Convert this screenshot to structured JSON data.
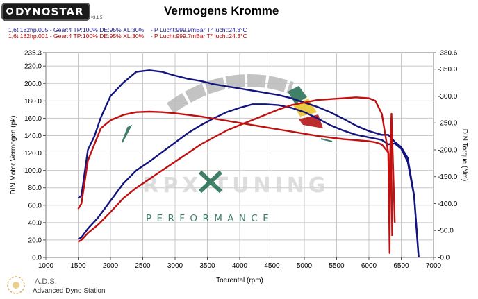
{
  "header": {
    "logo_text": "DYNOSTAR",
    "logo_version": "v3.1 5",
    "title": "Vermogens Kromme",
    "runs": [
      "1,6t 182hp.005 - Gear:4 TP:100% DE:95% XL:30%    - P Lucht:999.9mBar T° lucht:24.3°C",
      "1,6t 182hp.001 - Gear:4 TP:100% DE:95% XL:30%    - P Lucht:999.7mBar T° lucht:24.3°C"
    ]
  },
  "footer": {
    "brand": "A.D.S.",
    "subtitle": "Advanced Dyno Station"
  },
  "watermark": {
    "tuning_text": "RPX TUNING",
    "performance_text": "PERFORMANCE"
  },
  "colors": {
    "run1": "#14147f",
    "run2": "#c01010",
    "grid": "#c8c8c8",
    "watermark_green": "#1e6a4c"
  },
  "chart_data": {
    "type": "line",
    "title": "Vermogens Kromme",
    "xlabel": "Toerental (rpm)",
    "ylabel": "DIN Motor Vermogen (pk)",
    "y2label": "DIN Torque (Nm)",
    "xlim": [
      1000,
      7000
    ],
    "ylim": [
      0,
      235.3
    ],
    "y2lim": [
      0,
      380.6
    ],
    "x_ticks": [
      "1000",
      "1500",
      "2000",
      "2500",
      "3000",
      "3500",
      "4000",
      "4500",
      "5000",
      "5500",
      "6000",
      "6500",
      "7000"
    ],
    "y_ticks": [
      "0.0",
      "20.0",
      "40.0",
      "60.0",
      "80.0",
      "100.0",
      "120.0",
      "140.0",
      "160.0",
      "180.0",
      "200.0",
      "220.0",
      "235.3"
    ],
    "y2_ticks": [
      "-0.0",
      "-50.0",
      "-100.0",
      "-150.0",
      "-200.0",
      "-250.0",
      "-300.0",
      "-350.0",
      "-380.6"
    ],
    "grid": true,
    "series": [
      {
        "name": "1,6t 182hp.005 - Gear:4 TP:100% DE:95% XL:30%",
        "metric": "power",
        "color": "#14147f",
        "points": [
          [
            1500,
            21
          ],
          [
            1550,
            23
          ],
          [
            1650,
            33
          ],
          [
            1800,
            45
          ],
          [
            2000,
            65
          ],
          [
            2200,
            85
          ],
          [
            2400,
            100
          ],
          [
            2600,
            110
          ],
          [
            2800,
            121
          ],
          [
            3000,
            132
          ],
          [
            3200,
            143
          ],
          [
            3400,
            152
          ],
          [
            3600,
            160
          ],
          [
            3800,
            167
          ],
          [
            4000,
            172
          ],
          [
            4200,
            176
          ],
          [
            4400,
            176
          ],
          [
            4600,
            175
          ],
          [
            4800,
            172
          ],
          [
            5000,
            167
          ],
          [
            5200,
            160
          ],
          [
            5400,
            152
          ],
          [
            5600,
            146
          ],
          [
            5800,
            141
          ],
          [
            6000,
            138
          ],
          [
            6200,
            135
          ],
          [
            6300,
            130
          ],
          [
            6400,
            131
          ],
          [
            6500,
            125
          ],
          [
            6600,
            110
          ],
          [
            6700,
            70
          ],
          [
            6770,
            0
          ]
        ]
      },
      {
        "name": "1,6t 182hp.005 - Gear:4 TP:100% DE:95% XL:30%",
        "metric": "torque",
        "color": "#14147f",
        "points": [
          [
            1500,
            110
          ],
          [
            1550,
            115
          ],
          [
            1650,
            200
          ],
          [
            1750,
            225
          ],
          [
            1850,
            260
          ],
          [
            2000,
            300
          ],
          [
            2200,
            325
          ],
          [
            2400,
            345
          ],
          [
            2600,
            348
          ],
          [
            2800,
            345
          ],
          [
            3000,
            338
          ],
          [
            3200,
            332
          ],
          [
            3400,
            328
          ],
          [
            3600,
            322
          ],
          [
            3800,
            318
          ],
          [
            4000,
            314
          ],
          [
            4200,
            310
          ],
          [
            4400,
            306
          ],
          [
            4600,
            302
          ],
          [
            4800,
            296
          ],
          [
            5000,
            288
          ],
          [
            5200,
            280
          ],
          [
            5400,
            270
          ],
          [
            5600,
            258
          ],
          [
            5800,
            245
          ],
          [
            6000,
            235
          ],
          [
            6200,
            228
          ],
          [
            6300,
            228
          ],
          [
            6400,
            215
          ],
          [
            6500,
            205
          ],
          [
            6600,
            185
          ],
          [
            6700,
            115
          ],
          [
            6770,
            0
          ]
        ]
      },
      {
        "name": "1,6t 182hp.001 - Gear:4 TP:100% DE:95% XL:30%",
        "metric": "power",
        "color": "#c01010",
        "points": [
          [
            1500,
            18
          ],
          [
            1550,
            20
          ],
          [
            1650,
            28
          ],
          [
            1800,
            37
          ],
          [
            2000,
            52
          ],
          [
            2200,
            68
          ],
          [
            2400,
            80
          ],
          [
            2600,
            90
          ],
          [
            2800,
            100
          ],
          [
            3000,
            110
          ],
          [
            3200,
            120
          ],
          [
            3400,
            130
          ],
          [
            3600,
            138
          ],
          [
            3800,
            146
          ],
          [
            4000,
            152
          ],
          [
            4200,
            158
          ],
          [
            4400,
            164
          ],
          [
            4600,
            170
          ],
          [
            4800,
            175
          ],
          [
            5000,
            178
          ],
          [
            5200,
            181
          ],
          [
            5400,
            182
          ],
          [
            5600,
            183
          ],
          [
            5800,
            184
          ],
          [
            6000,
            183
          ],
          [
            6100,
            180
          ],
          [
            6200,
            165
          ],
          [
            6300,
            120
          ],
          [
            6320,
            5
          ],
          [
            6330,
            120
          ],
          [
            6350,
            165
          ],
          [
            6400,
            40
          ]
        ]
      },
      {
        "name": "1,6t 182hp.001 - Gear:4 TP:100% DE:95% XL:30%",
        "metric": "torque",
        "color": "#c01010",
        "points": [
          [
            1500,
            90
          ],
          [
            1550,
            100
          ],
          [
            1650,
            180
          ],
          [
            1750,
            210
          ],
          [
            1850,
            240
          ],
          [
            2000,
            255
          ],
          [
            2200,
            265
          ],
          [
            2400,
            270
          ],
          [
            2600,
            271
          ],
          [
            2800,
            270
          ],
          [
            3000,
            268
          ],
          [
            3200,
            265
          ],
          [
            3400,
            262
          ],
          [
            3600,
            258
          ],
          [
            3800,
            254
          ],
          [
            4000,
            250
          ],
          [
            4200,
            246
          ],
          [
            4400,
            242
          ],
          [
            4600,
            238
          ],
          [
            4800,
            234
          ],
          [
            5000,
            230
          ],
          [
            5200,
            226
          ],
          [
            5400,
            223
          ],
          [
            5600,
            220
          ],
          [
            5800,
            218
          ],
          [
            6000,
            216
          ],
          [
            6100,
            214
          ],
          [
            6200,
            210
          ],
          [
            6300,
            195
          ],
          [
            6320,
            80
          ],
          [
            6340,
            240
          ],
          [
            6360,
            40
          ]
        ]
      }
    ]
  }
}
